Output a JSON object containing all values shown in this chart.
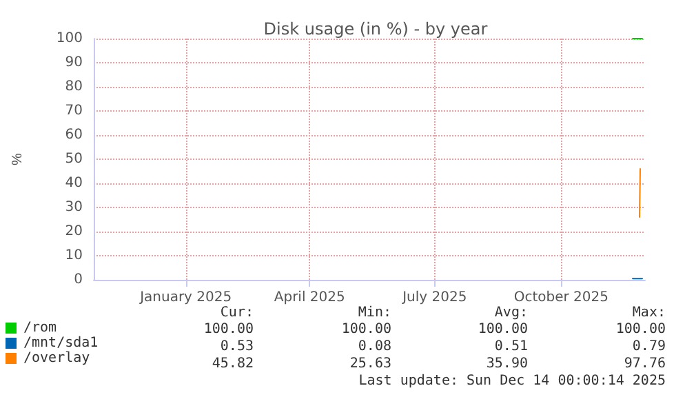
{
  "chart_data": {
    "type": "line",
    "title": "Disk usage (in %) - by year",
    "ylabel": "%",
    "xlim": [
      "2024-11-10",
      "2025-12-16"
    ],
    "xticks": [
      {
        "value": "2025-01-16",
        "label": "January 2025"
      },
      {
        "value": "2025-04-16",
        "label": "April 2025"
      },
      {
        "value": "2025-07-16",
        "label": "July 2025"
      },
      {
        "value": "2025-10-16",
        "label": "October 2025"
      }
    ],
    "ylim": [
      0,
      100
    ],
    "yticks": [
      0,
      10,
      20,
      30,
      40,
      50,
      60,
      70,
      80,
      90,
      100
    ],
    "grid": true,
    "legend": "bottom left",
    "marker": "none",
    "line_style": "solid",
    "series": [
      {
        "name": "/rom",
        "color": "#00cc00",
        "x": [
          "2025-12-07",
          "2025-12-14"
        ],
        "values": [
          100,
          100
        ]
      },
      {
        "name": "/mnt/sda1",
        "color": "#0066b3",
        "x": [
          "2025-12-07",
          "2025-12-14"
        ],
        "values": [
          0.5,
          0.5
        ]
      },
      {
        "name": "/overlay",
        "color": "#ff8000",
        "x": [
          "2025-12-12",
          "2025-12-12T12:00"
        ],
        "values": [
          26,
          46
        ]
      }
    ],
    "annotations": [
      "Cur:",
      "Min:",
      "Avg:",
      "Max:",
      "100.00",
      "100.00",
      "100.00",
      "100.00",
      "0.53",
      "0.08",
      "0.51",
      "0.79",
      "45.82",
      "25.63",
      "35.90",
      "97.76",
      "Last update: Sun Dec 14 00:00:14 2025"
    ]
  }
}
